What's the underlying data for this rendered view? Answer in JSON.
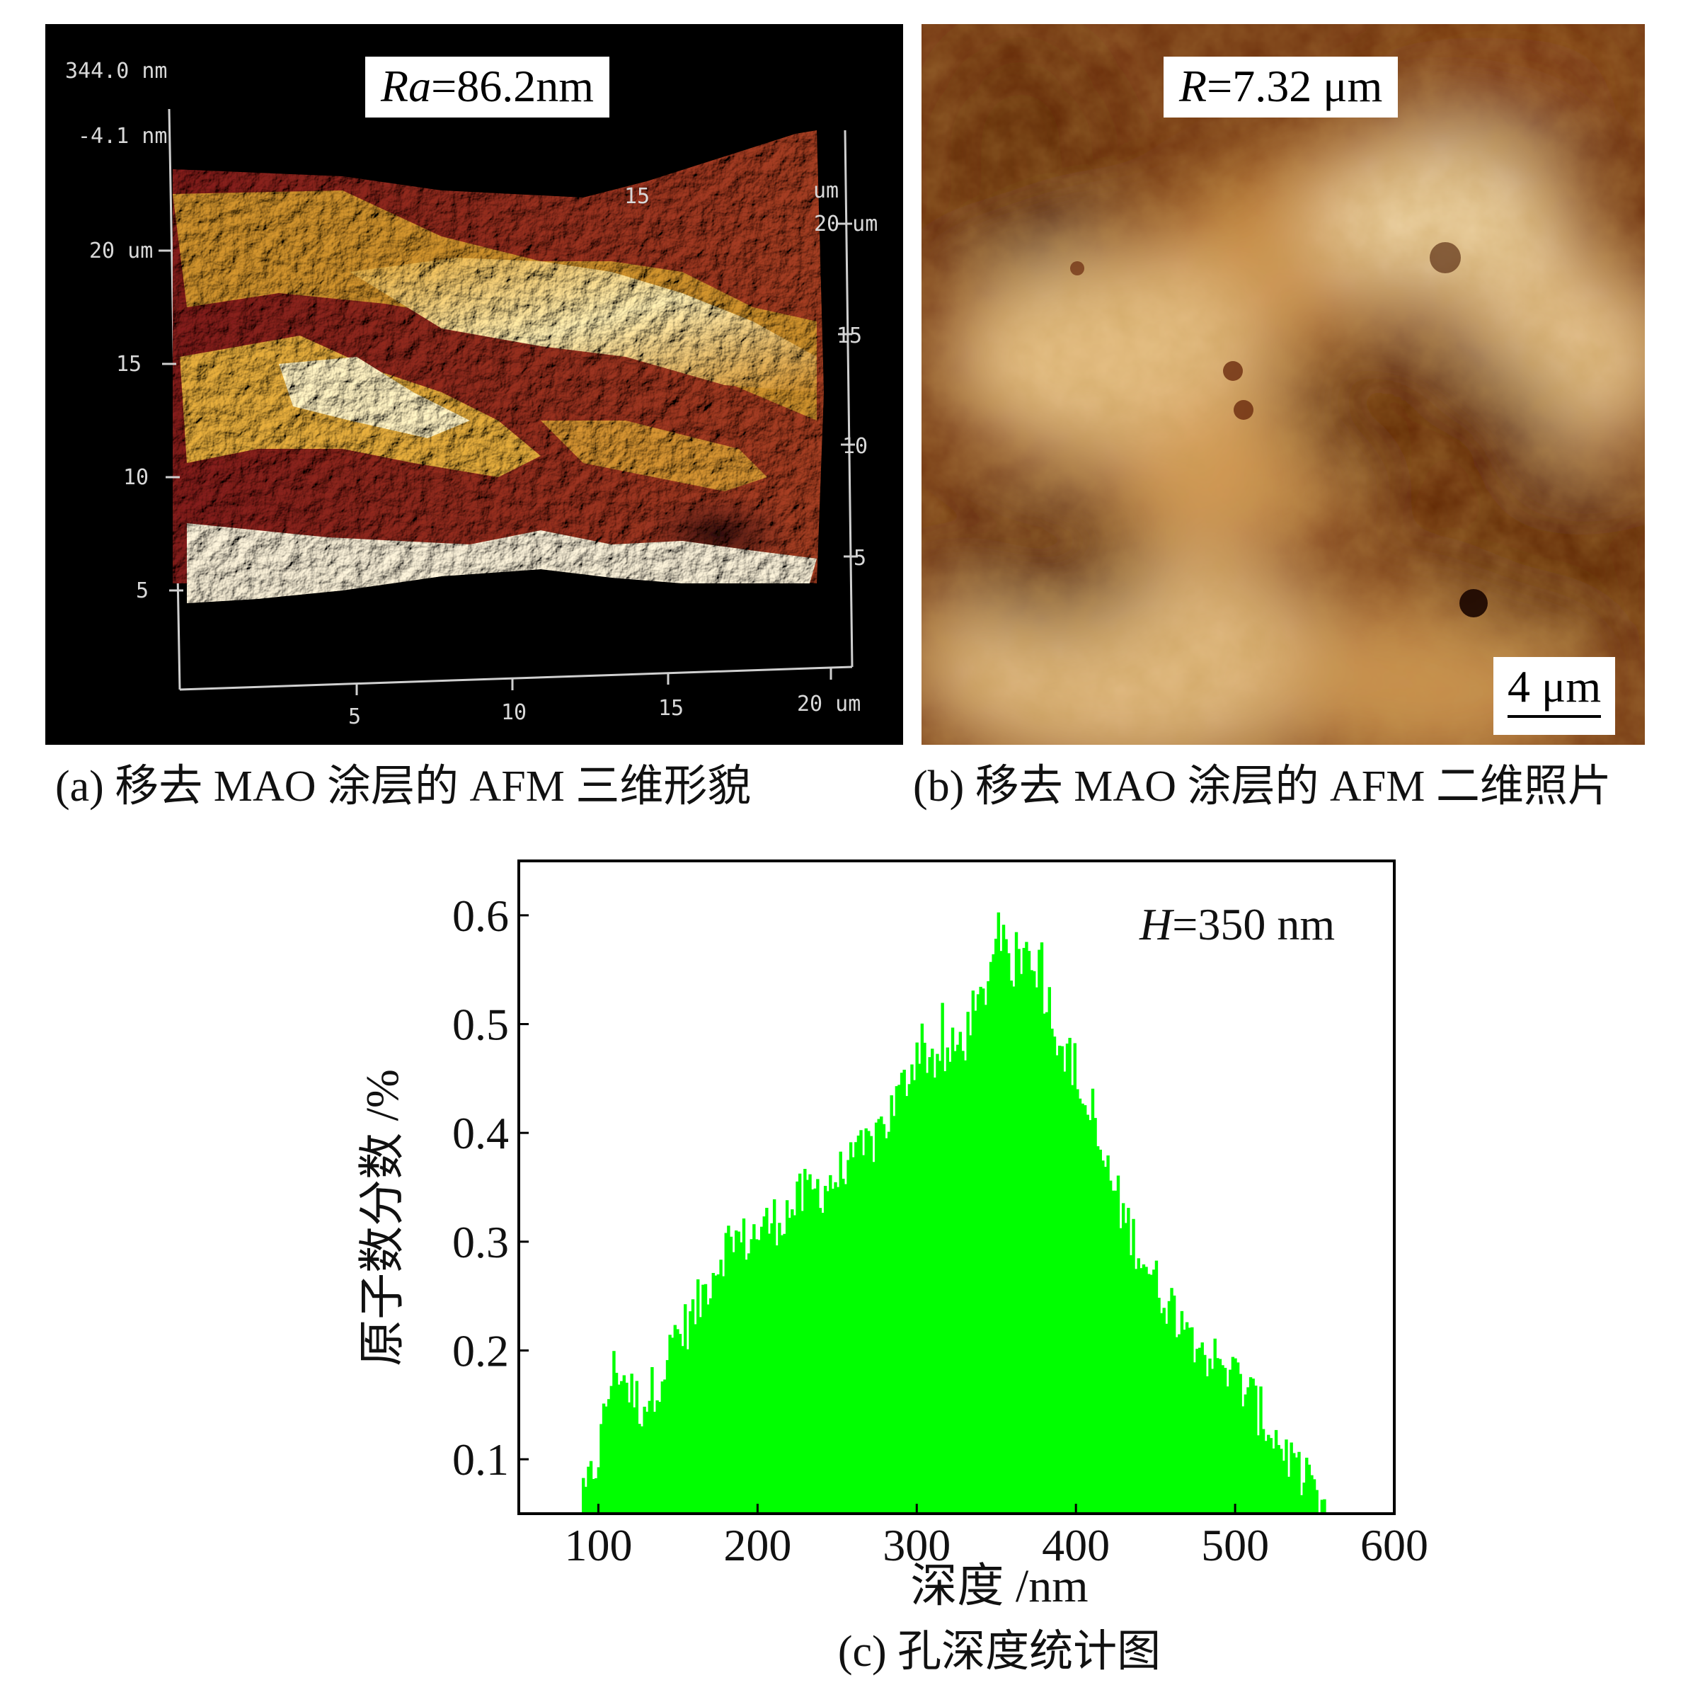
{
  "panel_a": {
    "label_var": "Ra",
    "label_val": "=86.2nm",
    "z_max": "344.0 nm",
    "z_min": "-4.1 nm",
    "left_axis": [
      "20 um",
      "15",
      "10",
      "5"
    ],
    "right_axis": [
      "20 um",
      "15",
      "10",
      "5"
    ],
    "back_axis": [
      "15",
      "um"
    ],
    "bottom_axis": [
      "5",
      "10",
      "15",
      "20 um"
    ],
    "caption": "(a) 移去 MAO 涂层的 AFM 三维形貌"
  },
  "panel_b": {
    "label_var": "R",
    "label_val": "=7.32 μm",
    "scale_bar": "4 μm",
    "caption": "(b) 移去 MAO 涂层的 AFM 二维照片"
  },
  "panel_c": {
    "annotation_var": "H",
    "annotation_val": "=350 nm",
    "caption": "(c) 孔深度统计图"
  },
  "chart_data": {
    "type": "bar",
    "title": "",
    "xlabel": "深度 /nm",
    "ylabel": "原子数分数 /%",
    "xlim": [
      50,
      600
    ],
    "ylim": [
      0.05,
      0.65
    ],
    "xticks": [
      100,
      200,
      300,
      400,
      500,
      600
    ],
    "yticks": [
      0.1,
      0.2,
      0.3,
      0.4,
      0.5,
      0.6
    ],
    "bar_color": "#00ff00",
    "envelope": [
      [
        88,
        0.05
      ],
      [
        92,
        0.07
      ],
      [
        96,
        0.09
      ],
      [
        100,
        0.11
      ],
      [
        104,
        0.15
      ],
      [
        108,
        0.18
      ],
      [
        112,
        0.185
      ],
      [
        116,
        0.175
      ],
      [
        120,
        0.16
      ],
      [
        126,
        0.15
      ],
      [
        132,
        0.16
      ],
      [
        140,
        0.185
      ],
      [
        150,
        0.215
      ],
      [
        160,
        0.235
      ],
      [
        170,
        0.27
      ],
      [
        180,
        0.3
      ],
      [
        190,
        0.3
      ],
      [
        200,
        0.31
      ],
      [
        210,
        0.32
      ],
      [
        220,
        0.33
      ],
      [
        230,
        0.345
      ],
      [
        240,
        0.35
      ],
      [
        250,
        0.36
      ],
      [
        260,
        0.37
      ],
      [
        270,
        0.39
      ],
      [
        280,
        0.41
      ],
      [
        290,
        0.44
      ],
      [
        300,
        0.48
      ],
      [
        310,
        0.47
      ],
      [
        320,
        0.47
      ],
      [
        330,
        0.49
      ],
      [
        340,
        0.52
      ],
      [
        346,
        0.56
      ],
      [
        350,
        0.58
      ],
      [
        356,
        0.55
      ],
      [
        362,
        0.56
      ],
      [
        370,
        0.57
      ],
      [
        378,
        0.54
      ],
      [
        386,
        0.5
      ],
      [
        394,
        0.47
      ],
      [
        402,
        0.44
      ],
      [
        410,
        0.4
      ],
      [
        420,
        0.36
      ],
      [
        430,
        0.32
      ],
      [
        440,
        0.29
      ],
      [
        450,
        0.26
      ],
      [
        460,
        0.24
      ],
      [
        470,
        0.22
      ],
      [
        480,
        0.2
      ],
      [
        490,
        0.185
      ],
      [
        500,
        0.175
      ],
      [
        510,
        0.155
      ],
      [
        520,
        0.13
      ],
      [
        530,
        0.11
      ],
      [
        540,
        0.085
      ],
      [
        550,
        0.065
      ],
      [
        556,
        0.05
      ]
    ]
  }
}
